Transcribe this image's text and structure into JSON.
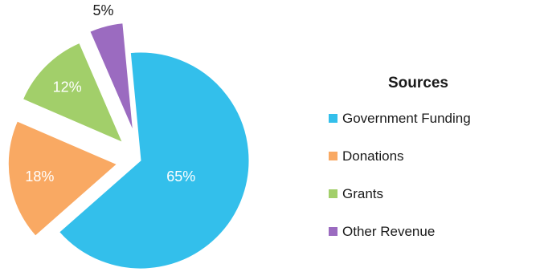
{
  "chart_data": {
    "type": "pie",
    "legend_title": "Sources",
    "legend_position": "right",
    "exploded": true,
    "slices": [
      {
        "label": "Government Funding",
        "value": 65,
        "display": "65%",
        "color": "#33bfeb"
      },
      {
        "label": "Donations",
        "value": 18,
        "display": "18%",
        "color": "#f9a963"
      },
      {
        "label": "Grants",
        "value": 12,
        "display": "12%",
        "color": "#a2cf6a"
      },
      {
        "label": "Other Revenue",
        "value": 5,
        "display": "5%",
        "color": "#9b6bc0"
      }
    ]
  }
}
